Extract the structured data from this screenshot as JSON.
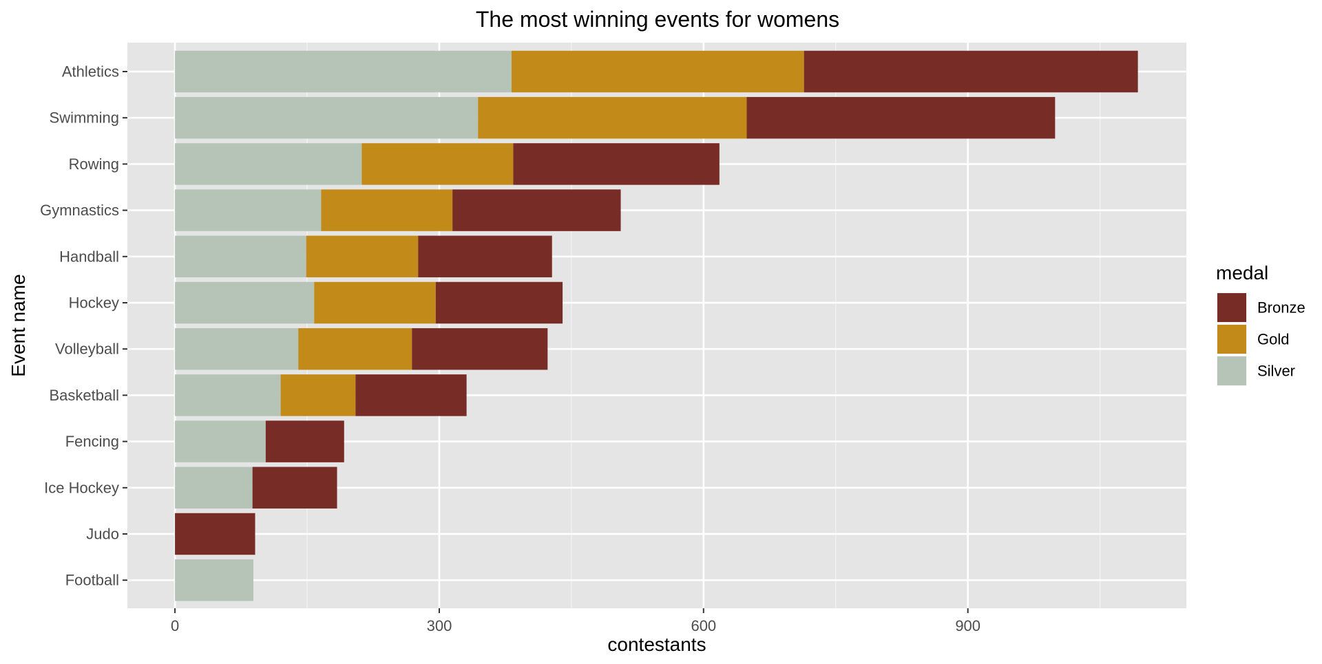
{
  "chart_data": {
    "type": "bar",
    "orientation": "horizontal",
    "stacked": true,
    "title": "The most winning events for womens",
    "xlabel": "contestants",
    "ylabel": "Event name",
    "categories": [
      "Athletics",
      "Swimming",
      "Rowing",
      "Gymnastics",
      "Handball",
      "Hockey",
      "Volleyball",
      "Basketball",
      "Fencing",
      "Ice Hockey",
      "Judo",
      "Football"
    ],
    "series": [
      {
        "name": "Silver",
        "color": "#B5C4B6",
        "values": [
          382,
          344,
          212,
          166,
          149,
          158,
          140,
          120,
          103,
          88,
          0,
          89
        ]
      },
      {
        "name": "Gold",
        "color": "#C28A18",
        "values": [
          332,
          305,
          172,
          149,
          127,
          138,
          129,
          85,
          0,
          0,
          0,
          0
        ]
      },
      {
        "name": "Bronze",
        "color": "#772C25",
        "values": [
          379,
          350,
          234,
          191,
          152,
          144,
          154,
          126,
          89,
          96,
          91,
          0
        ]
      }
    ],
    "xlim": [
      -54,
      1148
    ],
    "xticks": [
      0,
      300,
      600,
      900
    ],
    "grid": true,
    "legend": {
      "title": "medal",
      "position": "right",
      "entries": [
        {
          "label": "Bronze",
          "color": "#772C25"
        },
        {
          "label": "Gold",
          "color": "#C28A18"
        },
        {
          "label": "Silver",
          "color": "#B5C4B6"
        }
      ]
    }
  }
}
